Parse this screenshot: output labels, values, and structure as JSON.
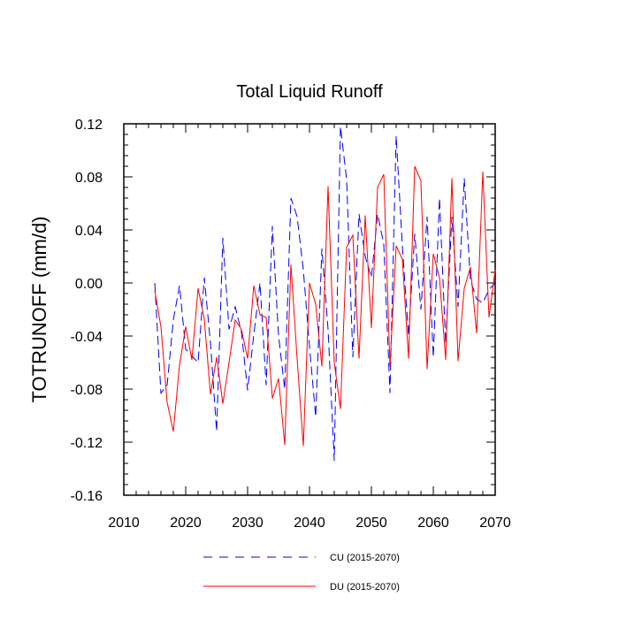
{
  "chart_data": {
    "type": "line",
    "title": "Total Liquid Runoff",
    "xlabel": "",
    "ylabel": "TOTRUNOFF  (mm/d)",
    "xlim": [
      2010,
      2070
    ],
    "ylim": [
      -0.16,
      0.12
    ],
    "x_ticks": [
      2010,
      2020,
      2030,
      2040,
      2050,
      2060,
      2070
    ],
    "x_tick_labels": [
      "2010",
      "2020",
      "2030",
      "2040",
      "2050",
      "2060",
      "2070"
    ],
    "y_ticks": [
      -0.16,
      -0.12,
      -0.08,
      -0.04,
      0.0,
      0.04,
      0.08,
      0.12
    ],
    "y_tick_labels": [
      "-0.16",
      "-0.12",
      "-0.08",
      "-0.04",
      "0.00",
      "0.04",
      "0.08",
      "0.12"
    ],
    "grid": false,
    "legend_position": "bottom-center",
    "x": [
      2015,
      2016,
      2017,
      2018,
      2019,
      2020,
      2021,
      2022,
      2023,
      2024,
      2025,
      2026,
      2027,
      2028,
      2029,
      2030,
      2031,
      2032,
      2033,
      2034,
      2035,
      2036,
      2037,
      2038,
      2039,
      2040,
      2041,
      2042,
      2043,
      2044,
      2045,
      2046,
      2047,
      2048,
      2049,
      2050,
      2051,
      2052,
      2053,
      2054,
      2055,
      2056,
      2057,
      2058,
      2059,
      2060,
      2061,
      2062,
      2063,
      2064,
      2065,
      2066,
      2067,
      2068,
      2069,
      2070
    ],
    "series": [
      {
        "name": "CU (2015-2070)",
        "color": "#0000ff",
        "dash": "dashed",
        "values": [
          0.0,
          -0.083,
          -0.077,
          -0.028,
          -0.002,
          -0.05,
          -0.055,
          -0.06,
          0.004,
          -0.045,
          -0.112,
          0.034,
          -0.035,
          -0.018,
          -0.037,
          -0.081,
          -0.039,
          0.0,
          -0.077,
          0.043,
          -0.04,
          -0.08,
          0.064,
          0.05,
          0.01,
          -0.048,
          -0.101,
          0.026,
          -0.035,
          -0.134,
          0.118,
          0.078,
          -0.056,
          0.052,
          0.02,
          0.004,
          0.052,
          0.029,
          -0.083,
          0.111,
          0.028,
          -0.04,
          0.037,
          -0.02,
          0.05,
          -0.056,
          0.064,
          -0.046,
          0.05,
          -0.018,
          0.079,
          0.002,
          -0.012,
          -0.015,
          -0.005,
          0.0
        ]
      },
      {
        "name": "DU (2015-2070)",
        "color": "#ff0000",
        "dash": "solid",
        "values": [
          -0.006,
          -0.033,
          -0.09,
          -0.112,
          -0.062,
          -0.033,
          -0.058,
          -0.004,
          -0.027,
          -0.084,
          -0.056,
          -0.091,
          -0.06,
          -0.028,
          -0.035,
          -0.057,
          -0.002,
          -0.024,
          -0.026,
          -0.087,
          -0.072,
          -0.122,
          0.014,
          -0.057,
          -0.123,
          0.0,
          -0.016,
          -0.063,
          0.073,
          -0.06,
          -0.095,
          0.027,
          0.036,
          -0.057,
          0.051,
          -0.034,
          0.072,
          0.082,
          -0.063,
          0.028,
          0.018,
          -0.057,
          0.088,
          0.077,
          -0.065,
          0.022,
          0.004,
          -0.058,
          0.079,
          -0.059,
          -0.004,
          0.012,
          -0.038,
          0.084,
          -0.026,
          0.01
        ]
      }
    ]
  }
}
